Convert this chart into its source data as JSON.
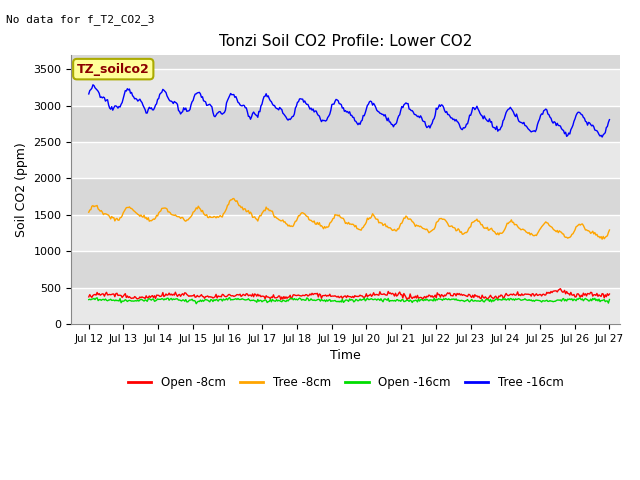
{
  "title": "Tonzi Soil CO2 Profile: Lower CO2",
  "subtitle": "No data for f_T2_CO2_3",
  "xlabel": "Time",
  "ylabel": "Soil CO2 (ppm)",
  "ylim": [
    0,
    3700
  ],
  "yticks": [
    0,
    500,
    1000,
    1500,
    2000,
    2500,
    3000,
    3500
  ],
  "xtick_labels": [
    "Jul 12",
    "Jul 13",
    "Jul 14",
    "Jul 15",
    "Jul 16",
    "Jul 17",
    "Jul 18",
    "Jul 19",
    "Jul 20",
    "Jul 21",
    "Jul 22",
    "Jul 23",
    "Jul 24",
    "Jul 25",
    "Jul 26",
    "Jul 27"
  ],
  "legend_label": "TZ_soilco2",
  "fig_bg_color": "#ffffff",
  "plot_bg_color": "#e8e8e8",
  "band_light": "#e8e8e8",
  "band_dark": "#d8d8d8",
  "grid_color": "#ffffff",
  "line_colors": {
    "open_8cm": "#ff0000",
    "tree_8cm": "#ffa500",
    "open_16cm": "#00dd00",
    "tree_16cm": "#0000ff"
  },
  "legend_labels": [
    "Open -8cm",
    "Tree -8cm",
    "Open -16cm",
    "Tree -16cm"
  ]
}
